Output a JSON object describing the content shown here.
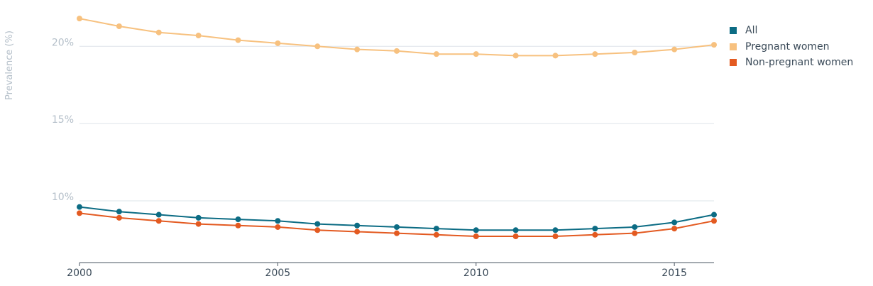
{
  "chart_data": {
    "type": "line",
    "title": "",
    "xlabel": "",
    "ylabel": "Prevalence (%)",
    "x": [
      2000,
      2001,
      2002,
      2003,
      2004,
      2005,
      2006,
      2007,
      2008,
      2009,
      2010,
      2011,
      2012,
      2013,
      2014,
      2015,
      2016
    ],
    "xlim": [
      2000,
      2016
    ],
    "ylim": [
      6,
      23
    ],
    "x_ticks": [
      {
        "value": 2000,
        "label": "2000"
      },
      {
        "value": 2005,
        "label": "2005"
      },
      {
        "value": 2010,
        "label": "2010"
      },
      {
        "value": 2015,
        "label": "2015"
      }
    ],
    "y_ticks": [
      {
        "value": 10,
        "label": "10%"
      },
      {
        "value": 15,
        "label": "15%"
      },
      {
        "value": 20,
        "label": "20%"
      }
    ],
    "grid": true,
    "legend_position": "top-right",
    "series": [
      {
        "name": "All",
        "color": "#0c6c84",
        "values": [
          9.6,
          9.3,
          9.1,
          8.9,
          8.8,
          8.7,
          8.5,
          8.4,
          8.3,
          8.2,
          8.1,
          8.1,
          8.1,
          8.2,
          8.3,
          8.6,
          9.1
        ]
      },
      {
        "name": "Pregnant women",
        "color": "#f7c17f",
        "values": [
          21.8,
          21.3,
          20.9,
          20.7,
          20.4,
          20.2,
          20.0,
          19.8,
          19.7,
          19.5,
          19.5,
          19.4,
          19.4,
          19.5,
          19.6,
          19.8,
          20.1
        ]
      },
      {
        "name": "Non-pregnant women",
        "color": "#e35a21",
        "values": [
          9.2,
          8.9,
          8.7,
          8.5,
          8.4,
          8.3,
          8.1,
          8.0,
          7.9,
          7.8,
          7.7,
          7.7,
          7.7,
          7.8,
          7.9,
          8.2,
          8.7
        ]
      }
    ]
  }
}
